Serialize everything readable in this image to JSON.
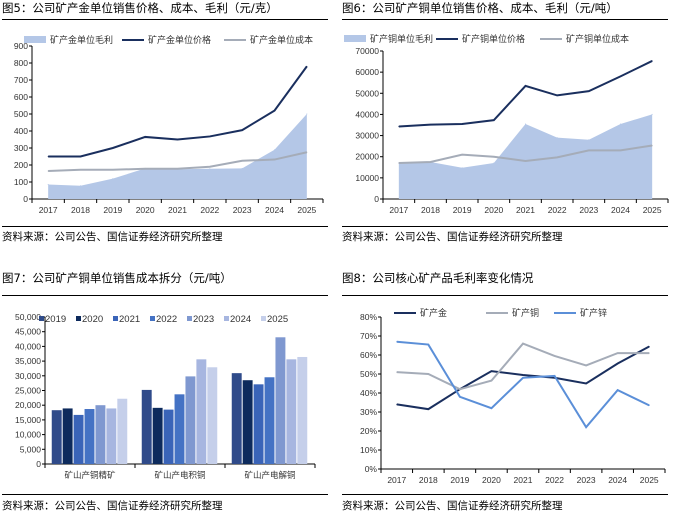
{
  "source": "资料来源：公司公告、国信证券经济研究所整理",
  "chart_data": [
    {
      "type": "area+line",
      "title": "图5：公司矿产金单位销售价格、成本、毛利（元/克）",
      "categories": [
        "2017",
        "2018",
        "2019",
        "2020",
        "2021",
        "2022",
        "2023",
        "2024",
        "2025"
      ],
      "ylim": [
        0,
        900
      ],
      "yticks": [
        0,
        100,
        200,
        300,
        400,
        500,
        600,
        700,
        800,
        900
      ],
      "series": [
        {
          "name": "矿产金单位毛利",
          "kind": "area",
          "color": "#b4c7e7",
          "values": [
            85,
            78,
            120,
            180,
            175,
            178,
            180,
            290,
            500
          ]
        },
        {
          "name": "矿产金单位价格",
          "kind": "line",
          "color": "#1a2f5e",
          "values": [
            250,
            250,
            300,
            365,
            350,
            368,
            405,
            520,
            780
          ]
        },
        {
          "name": "矿产金单位成本",
          "kind": "line",
          "color": "#a5acb8",
          "values": [
            165,
            172,
            172,
            178,
            178,
            190,
            225,
            232,
            275
          ]
        }
      ]
    },
    {
      "type": "area+line",
      "title": "图6：公司矿产铜单位销售价格、成本、毛利（元/吨）",
      "categories": [
        "2017",
        "2018",
        "2019",
        "2020",
        "2021",
        "2022",
        "2023",
        "2024",
        "2025"
      ],
      "ylim": [
        0,
        70000
      ],
      "yticks": [
        0,
        10000,
        20000,
        30000,
        40000,
        50000,
        60000,
        70000
      ],
      "series": [
        {
          "name": "矿产铜单位毛利",
          "kind": "area",
          "color": "#b4c7e7",
          "values": [
            17000,
            17500,
            14800,
            17000,
            35500,
            29000,
            28000,
            35500,
            40000
          ]
        },
        {
          "name": "矿产铜单位价格",
          "kind": "line",
          "color": "#1a2f5e",
          "values": [
            34300,
            35200,
            35500,
            37300,
            53500,
            49000,
            51000,
            58000,
            65300
          ]
        },
        {
          "name": "矿产铜单位成本",
          "kind": "line",
          "color": "#a5acb8",
          "values": [
            17000,
            17500,
            21000,
            20000,
            18000,
            19700,
            23000,
            23000,
            25300
          ]
        }
      ]
    },
    {
      "type": "bar",
      "title": "图7：公司矿产铜单位销售成本拆分（元/吨）",
      "categories": [
        "矿山产铜精矿",
        "矿山产电积铜",
        "矿山产电解铜"
      ],
      "ylim": [
        0,
        50000
      ],
      "yticks": [
        "0",
        "5,000",
        "10,000",
        "15,000",
        "20,000",
        "25,000",
        "30,000",
        "35,000",
        "40,000",
        "45,000",
        "50,000"
      ],
      "series": [
        {
          "name": "2019",
          "color": "#2f4b8a",
          "values": [
            18300,
            25200,
            30900
          ]
        },
        {
          "name": "2020",
          "color": "#0d2a5c",
          "values": [
            18900,
            19100,
            28500
          ]
        },
        {
          "name": "2021",
          "color": "#3a64b8",
          "values": [
            16700,
            18500,
            27100
          ]
        },
        {
          "name": "2022",
          "color": "#4472c4",
          "values": [
            18700,
            23700,
            29500
          ]
        },
        {
          "name": "2023",
          "color": "#7f98d0",
          "values": [
            20000,
            29800,
            43100
          ]
        },
        {
          "name": "2024",
          "color": "#a7b6e0",
          "values": [
            18900,
            35600,
            35600
          ]
        },
        {
          "name": "2025",
          "color": "#c5cfea",
          "values": [
            22200,
            32900,
            36400
          ]
        }
      ]
    },
    {
      "type": "line",
      "title": "图8：公司核心矿产品毛利率变化情况",
      "categories": [
        "2017",
        "2018",
        "2019",
        "2020",
        "2021",
        "2022",
        "2023",
        "2024",
        "2025"
      ],
      "ylim": [
        0,
        80
      ],
      "yticks": [
        "0%",
        "10%",
        "20%",
        "30%",
        "40%",
        "50%",
        "60%",
        "70%",
        "80%"
      ],
      "series": [
        {
          "name": "矿产金",
          "kind": "line",
          "color": "#1a2f5e",
          "values": [
            34,
            31.5,
            42,
            51.5,
            49.5,
            48,
            45,
            55.5,
            64.5
          ]
        },
        {
          "name": "矿产铜",
          "kind": "line",
          "color": "#a5acb8",
          "values": [
            51,
            50,
            42,
            46.5,
            66,
            59.5,
            54.5,
            61,
            61
          ]
        },
        {
          "name": "矿产锌",
          "kind": "line",
          "color": "#5b8fd8",
          "values": [
            67,
            65.5,
            38,
            32,
            48,
            49,
            22,
            41.5,
            33.5
          ]
        }
      ]
    }
  ]
}
